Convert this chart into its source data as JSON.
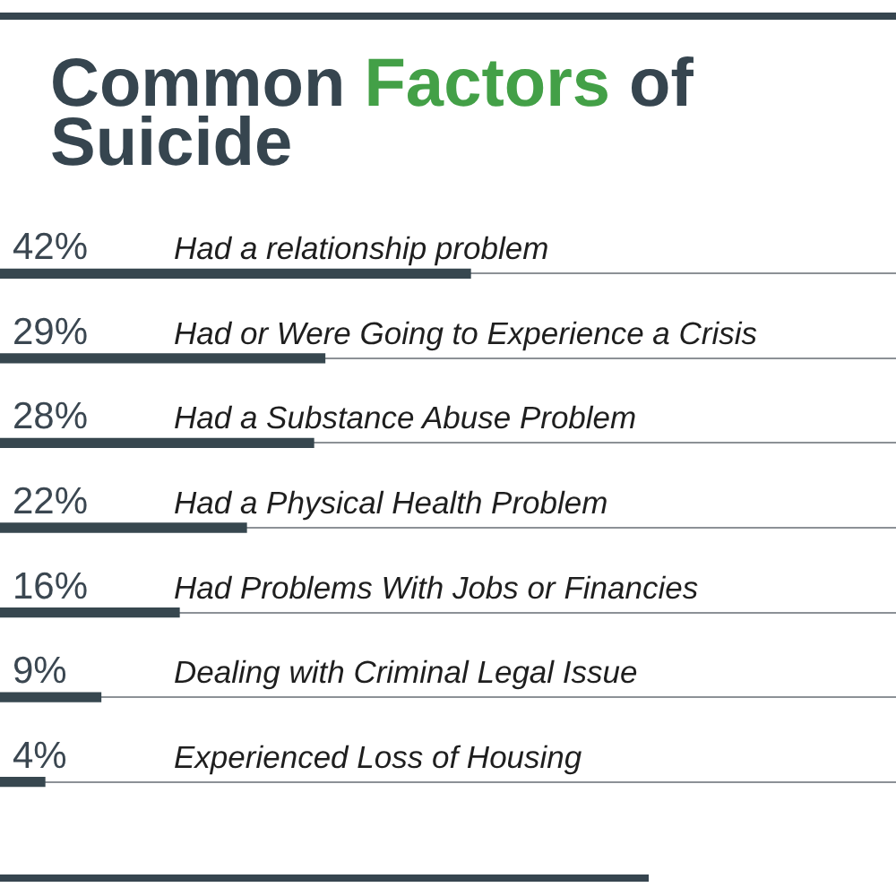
{
  "chart_data": {
    "type": "bar",
    "orientation": "horizontal",
    "title": "Common Factors of Suicide",
    "categories": [
      "Had a relationship problem",
      "Had or Were Going to Experience a Crisis",
      "Had a Substance Abuse Problem",
      "Had a Physical Health Problem",
      "Had Problems With Jobs or Financies",
      "Dealing with Criminal Legal Issue",
      "Experienced Loss of Housing"
    ],
    "values": [
      42,
      29,
      28,
      22,
      16,
      9,
      4
    ],
    "value_labels": [
      "42%",
      "29%",
      "28%",
      "22%",
      "16%",
      "9%",
      "4%"
    ],
    "color": "#37474f",
    "xlim": [
      0,
      80
    ],
    "grid": "y",
    "tick_labels": "y"
  }
}
